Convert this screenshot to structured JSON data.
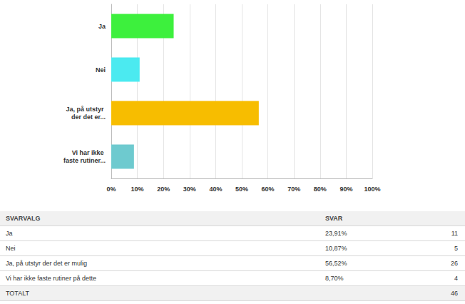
{
  "chart_data": {
    "type": "bar",
    "orientation": "horizontal",
    "categories": [
      "Ja",
      "Nei",
      "Ja, på utstyr der det er...",
      "Vi har ikke faste rutiner..."
    ],
    "values": [
      23.91,
      10.87,
      56.52,
      8.7
    ],
    "colors": [
      "#3df03d",
      "#4beaf0",
      "#f7bd00",
      "#6ecacf"
    ],
    "xlim": [
      0,
      100
    ],
    "xticks": [
      {
        "value": 0,
        "label": "0%"
      },
      {
        "value": 10,
        "label": "10%"
      },
      {
        "value": 20,
        "label": "20%"
      },
      {
        "value": 30,
        "label": "30%"
      },
      {
        "value": 40,
        "label": "40%"
      },
      {
        "value": 50,
        "label": "50%"
      },
      {
        "value": 60,
        "label": "60%"
      },
      {
        "value": 70,
        "label": "70%"
      },
      {
        "value": 80,
        "label": "80%"
      },
      {
        "value": 90,
        "label": "90%"
      },
      {
        "value": 100,
        "label": "100%"
      }
    ],
    "grid": true
  },
  "table": {
    "header": [
      "SVARVALG",
      "SVAR"
    ],
    "rows": [
      [
        "Ja",
        "23,91%",
        11
      ],
      [
        "Nei",
        "10,87%",
        5
      ],
      [
        "Ja, på utstyr der det er mulig",
        "56,52%",
        26
      ],
      [
        "Vi har ikke faste rutiner på dette",
        "8,70%",
        4
      ]
    ],
    "total": [
      "TOTALT",
      46
    ]
  }
}
